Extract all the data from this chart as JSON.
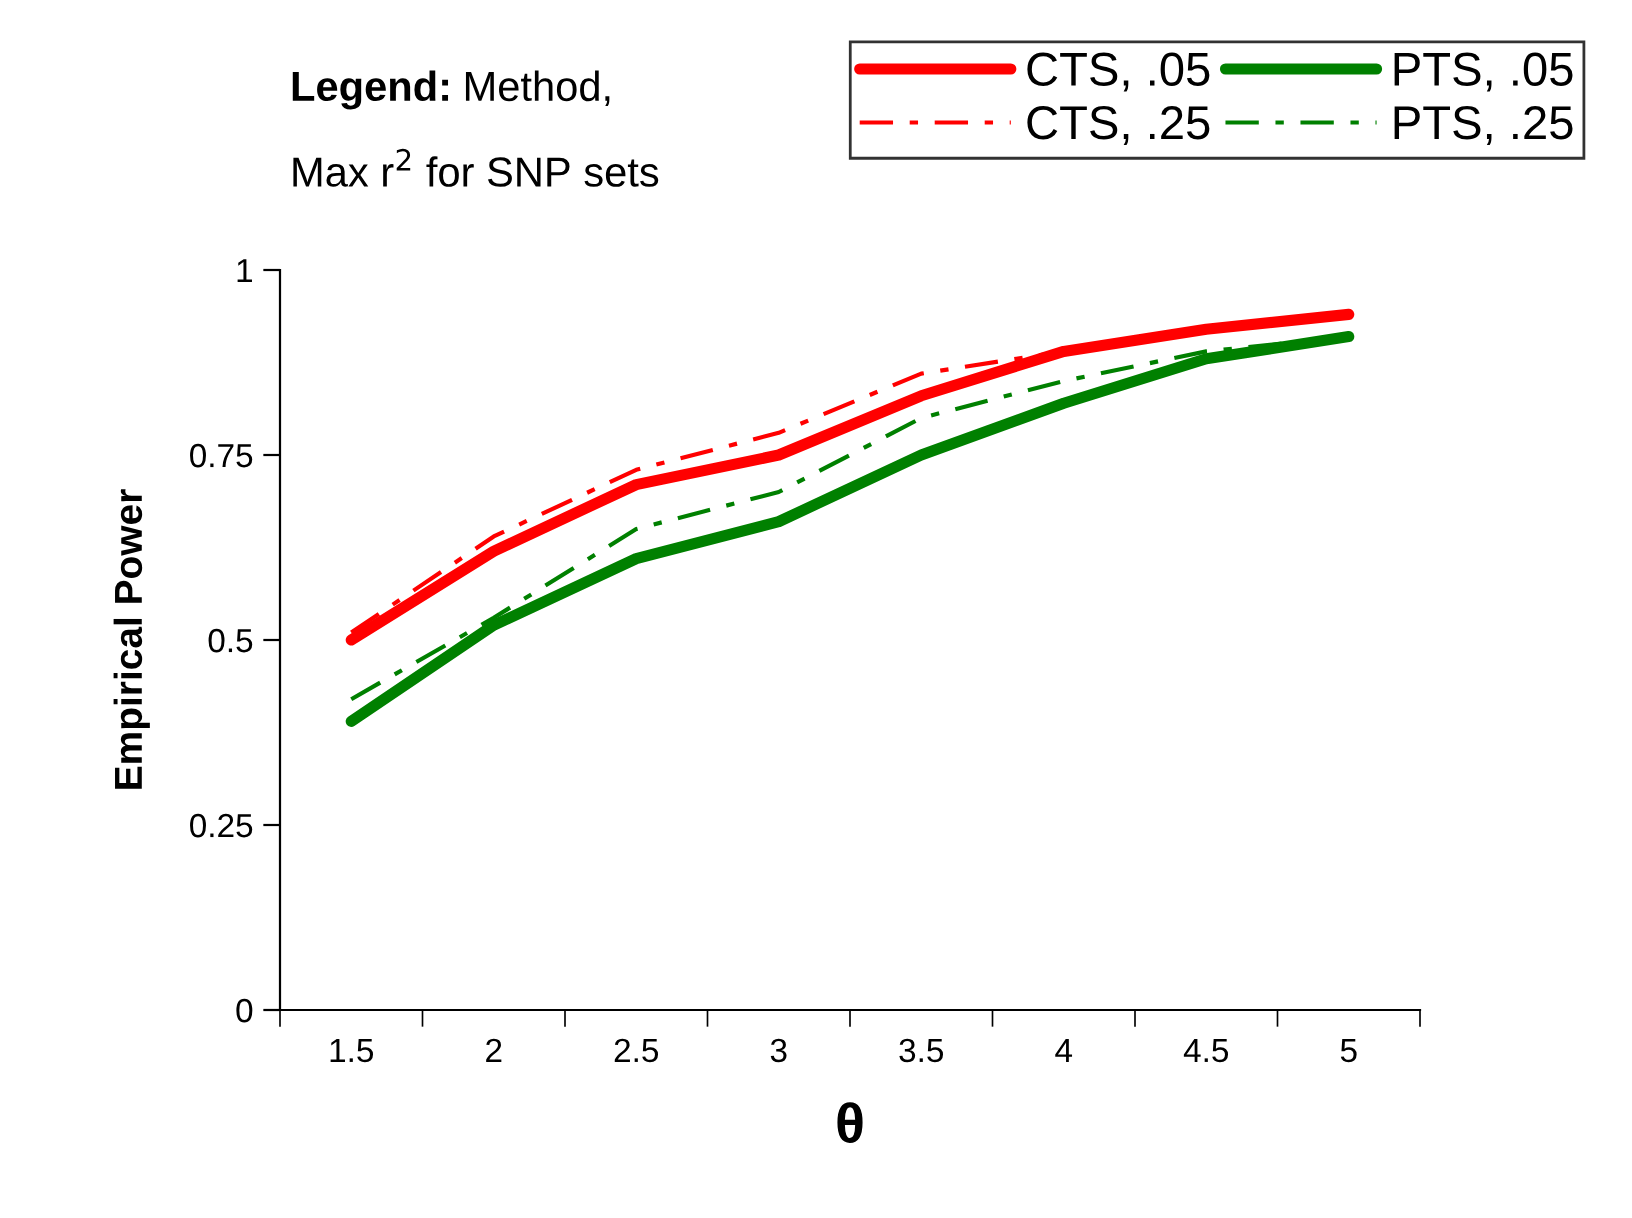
{
  "chart_data": {
    "type": "line",
    "xlabel": "θ",
    "ylabel": "Empirical Power",
    "legend_title": "Legend: Method,\nMax r$^{2}$ for SNP sets",
    "categories": [
      "1.5",
      "2",
      "2.5",
      "3",
      "3.5",
      "4",
      "4.5",
      "5"
    ],
    "series": [
      {
        "name": "CTS, .05",
        "color": "#ff0000",
        "line_style": "solid",
        "values": [
          0.5,
          0.62,
          0.71,
          0.75,
          0.83,
          0.89,
          0.92,
          0.94
        ]
      },
      {
        "name": "CTS, .25",
        "color": "#ff0000",
        "line_style": "dashdot",
        "values": [
          0.51,
          0.64,
          0.73,
          0.78,
          0.86,
          0.89,
          0.92,
          0.94
        ]
      },
      {
        "name": "PTS, .05",
        "color": "#008000",
        "line_style": "solid",
        "values": [
          0.39,
          0.52,
          0.61,
          0.66,
          0.75,
          0.82,
          0.88,
          0.91
        ]
      },
      {
        "name": "PTS, .25",
        "color": "#008000",
        "line_style": "dashdot",
        "values": [
          0.42,
          0.53,
          0.65,
          0.7,
          0.8,
          0.85,
          0.89,
          0.91
        ]
      }
    ],
    "ylim": [
      0,
      1
    ],
    "yticks": [
      0,
      0.25,
      0.5,
      0.75,
      1
    ],
    "grid": false,
    "legend": "top right"
  }
}
